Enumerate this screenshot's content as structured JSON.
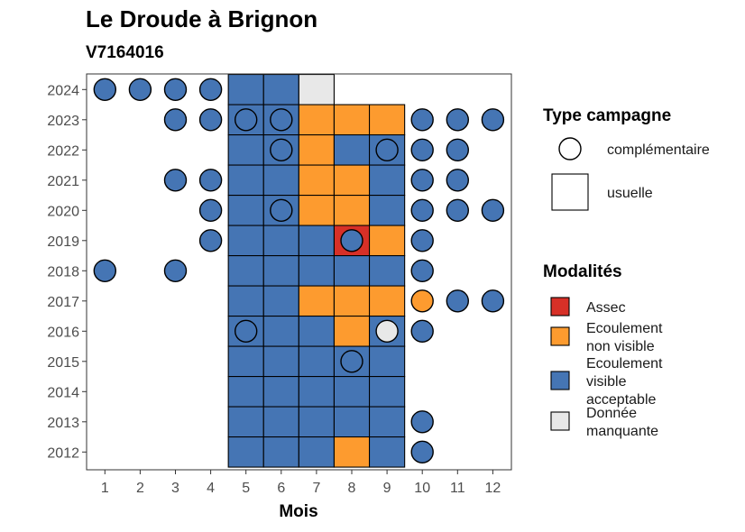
{
  "chart_data": {
    "type": "heatmap",
    "title": "Le Droude à Brignon",
    "subtitle": "V7164016",
    "xlabel": "Mois",
    "ylabel": "",
    "x_ticks": [
      "1",
      "2",
      "3",
      "4",
      "5",
      "6",
      "7",
      "8",
      "9",
      "10",
      "11",
      "12"
    ],
    "y_ticks": [
      "2012",
      "2013",
      "2014",
      "2015",
      "2016",
      "2017",
      "2018",
      "2019",
      "2020",
      "2021",
      "2022",
      "2023",
      "2024"
    ],
    "xlim": [
      0.5,
      12.5
    ],
    "ylim": [
      2011.5,
      2024.5
    ],
    "grid": false,
    "legend_position": "right",
    "legend_shape": {
      "title": "Type campagne",
      "entries": [
        {
          "key": "complementaire",
          "label": "complémentaire",
          "shape": "circle"
        },
        {
          "key": "usuelle",
          "label": "usuelle",
          "shape": "square"
        }
      ]
    },
    "legend_fill": {
      "title": "Modalités",
      "entries": [
        {
          "key": "assec",
          "lines": [
            "Assec"
          ],
          "color": "#d73027"
        },
        {
          "key": "ecoulement_non_visible",
          "lines": [
            "Ecoulement",
            "non visible"
          ],
          "color": "#fd9b2f"
        },
        {
          "key": "ecoulement_visible",
          "lines": [
            "Ecoulement",
            "visible",
            "acceptable"
          ],
          "color": "#4575b4"
        },
        {
          "key": "donnee_manquante",
          "lines": [
            "Donnée",
            "manquante"
          ],
          "color": "#e8e8e8"
        }
      ]
    },
    "usuelle": [
      {
        "year": 2024,
        "month": 5,
        "mod": "ecoulement_visible"
      },
      {
        "year": 2024,
        "month": 6,
        "mod": "ecoulement_visible"
      },
      {
        "year": 2024,
        "month": 7,
        "mod": "donnee_manquante"
      },
      {
        "year": 2023,
        "month": 5,
        "mod": "ecoulement_visible"
      },
      {
        "year": 2023,
        "month": 6,
        "mod": "ecoulement_visible"
      },
      {
        "year": 2023,
        "month": 7,
        "mod": "ecoulement_non_visible"
      },
      {
        "year": 2023,
        "month": 8,
        "mod": "ecoulement_non_visible"
      },
      {
        "year": 2023,
        "month": 9,
        "mod": "ecoulement_non_visible"
      },
      {
        "year": 2022,
        "month": 5,
        "mod": "ecoulement_visible"
      },
      {
        "year": 2022,
        "month": 6,
        "mod": "ecoulement_visible"
      },
      {
        "year": 2022,
        "month": 7,
        "mod": "ecoulement_non_visible"
      },
      {
        "year": 2022,
        "month": 8,
        "mod": "ecoulement_visible"
      },
      {
        "year": 2022,
        "month": 9,
        "mod": "ecoulement_visible"
      },
      {
        "year": 2021,
        "month": 5,
        "mod": "ecoulement_visible"
      },
      {
        "year": 2021,
        "month": 6,
        "mod": "ecoulement_visible"
      },
      {
        "year": 2021,
        "month": 7,
        "mod": "ecoulement_non_visible"
      },
      {
        "year": 2021,
        "month": 8,
        "mod": "ecoulement_non_visible"
      },
      {
        "year": 2021,
        "month": 9,
        "mod": "ecoulement_visible"
      },
      {
        "year": 2020,
        "month": 5,
        "mod": "ecoulement_visible"
      },
      {
        "year": 2020,
        "month": 6,
        "mod": "ecoulement_visible"
      },
      {
        "year": 2020,
        "month": 7,
        "mod": "ecoulement_non_visible"
      },
      {
        "year": 2020,
        "month": 8,
        "mod": "ecoulement_non_visible"
      },
      {
        "year": 2020,
        "month": 9,
        "mod": "ecoulement_visible"
      },
      {
        "year": 2019,
        "month": 5,
        "mod": "ecoulement_visible"
      },
      {
        "year": 2019,
        "month": 6,
        "mod": "ecoulement_visible"
      },
      {
        "year": 2019,
        "month": 7,
        "mod": "ecoulement_visible"
      },
      {
        "year": 2019,
        "month": 8,
        "mod": "assec"
      },
      {
        "year": 2019,
        "month": 9,
        "mod": "ecoulement_non_visible"
      },
      {
        "year": 2018,
        "month": 5,
        "mod": "ecoulement_visible"
      },
      {
        "year": 2018,
        "month": 6,
        "mod": "ecoulement_visible"
      },
      {
        "year": 2018,
        "month": 7,
        "mod": "ecoulement_visible"
      },
      {
        "year": 2018,
        "month": 8,
        "mod": "ecoulement_visible"
      },
      {
        "year": 2018,
        "month": 9,
        "mod": "ecoulement_visible"
      },
      {
        "year": 2017,
        "month": 5,
        "mod": "ecoulement_visible"
      },
      {
        "year": 2017,
        "month": 6,
        "mod": "ecoulement_visible"
      },
      {
        "year": 2017,
        "month": 7,
        "mod": "ecoulement_non_visible"
      },
      {
        "year": 2017,
        "month": 8,
        "mod": "ecoulement_non_visible"
      },
      {
        "year": 2017,
        "month": 9,
        "mod": "ecoulement_non_visible"
      },
      {
        "year": 2016,
        "month": 5,
        "mod": "ecoulement_visible"
      },
      {
        "year": 2016,
        "month": 6,
        "mod": "ecoulement_visible"
      },
      {
        "year": 2016,
        "month": 7,
        "mod": "ecoulement_visible"
      },
      {
        "year": 2016,
        "month": 8,
        "mod": "ecoulement_non_visible"
      },
      {
        "year": 2016,
        "month": 9,
        "mod": "ecoulement_visible"
      },
      {
        "year": 2015,
        "month": 5,
        "mod": "ecoulement_visible"
      },
      {
        "year": 2015,
        "month": 6,
        "mod": "ecoulement_visible"
      },
      {
        "year": 2015,
        "month": 7,
        "mod": "ecoulement_visible"
      },
      {
        "year": 2015,
        "month": 8,
        "mod": "ecoulement_visible"
      },
      {
        "year": 2015,
        "month": 9,
        "mod": "ecoulement_visible"
      },
      {
        "year": 2014,
        "month": 5,
        "mod": "ecoulement_visible"
      },
      {
        "year": 2014,
        "month": 6,
        "mod": "ecoulement_visible"
      },
      {
        "year": 2014,
        "month": 7,
        "mod": "ecoulement_visible"
      },
      {
        "year": 2014,
        "month": 8,
        "mod": "ecoulement_visible"
      },
      {
        "year": 2014,
        "month": 9,
        "mod": "ecoulement_visible"
      },
      {
        "year": 2013,
        "month": 5,
        "mod": "ecoulement_visible"
      },
      {
        "year": 2013,
        "month": 6,
        "mod": "ecoulement_visible"
      },
      {
        "year": 2013,
        "month": 7,
        "mod": "ecoulement_visible"
      },
      {
        "year": 2013,
        "month": 8,
        "mod": "ecoulement_visible"
      },
      {
        "year": 2013,
        "month": 9,
        "mod": "ecoulement_visible"
      },
      {
        "year": 2012,
        "month": 5,
        "mod": "ecoulement_visible"
      },
      {
        "year": 2012,
        "month": 6,
        "mod": "ecoulement_visible"
      },
      {
        "year": 2012,
        "month": 7,
        "mod": "ecoulement_visible"
      },
      {
        "year": 2012,
        "month": 8,
        "mod": "ecoulement_non_visible"
      },
      {
        "year": 2012,
        "month": 9,
        "mod": "ecoulement_visible"
      }
    ],
    "complementaire": [
      {
        "year": 2024,
        "month": 1,
        "mod": "ecoulement_visible"
      },
      {
        "year": 2024,
        "month": 2,
        "mod": "ecoulement_visible"
      },
      {
        "year": 2024,
        "month": 3,
        "mod": "ecoulement_visible"
      },
      {
        "year": 2024,
        "month": 4,
        "mod": "ecoulement_visible"
      },
      {
        "year": 2023,
        "month": 3,
        "mod": "ecoulement_visible"
      },
      {
        "year": 2023,
        "month": 4,
        "mod": "ecoulement_visible"
      },
      {
        "year": 2023,
        "month": 5,
        "mod": "ecoulement_visible"
      },
      {
        "year": 2023,
        "month": 6,
        "mod": "ecoulement_visible"
      },
      {
        "year": 2023,
        "month": 10,
        "mod": "ecoulement_visible"
      },
      {
        "year": 2023,
        "month": 11,
        "mod": "ecoulement_visible"
      },
      {
        "year": 2023,
        "month": 12,
        "mod": "ecoulement_visible"
      },
      {
        "year": 2022,
        "month": 6,
        "mod": "ecoulement_visible"
      },
      {
        "year": 2022,
        "month": 9,
        "mod": "ecoulement_visible"
      },
      {
        "year": 2022,
        "month": 10,
        "mod": "ecoulement_visible"
      },
      {
        "year": 2022,
        "month": 11,
        "mod": "ecoulement_visible"
      },
      {
        "year": 2021,
        "month": 3,
        "mod": "ecoulement_visible"
      },
      {
        "year": 2021,
        "month": 4,
        "mod": "ecoulement_visible"
      },
      {
        "year": 2021,
        "month": 10,
        "mod": "ecoulement_visible"
      },
      {
        "year": 2021,
        "month": 11,
        "mod": "ecoulement_visible"
      },
      {
        "year": 2020,
        "month": 4,
        "mod": "ecoulement_visible"
      },
      {
        "year": 2020,
        "month": 6,
        "mod": "ecoulement_visible"
      },
      {
        "year": 2020,
        "month": 10,
        "mod": "ecoulement_visible"
      },
      {
        "year": 2020,
        "month": 11,
        "mod": "ecoulement_visible"
      },
      {
        "year": 2020,
        "month": 12,
        "mod": "ecoulement_visible"
      },
      {
        "year": 2019,
        "month": 4,
        "mod": "ecoulement_visible"
      },
      {
        "year": 2019,
        "month": 8,
        "mod": "ecoulement_visible"
      },
      {
        "year": 2019,
        "month": 10,
        "mod": "ecoulement_visible"
      },
      {
        "year": 2018,
        "month": 1,
        "mod": "ecoulement_visible"
      },
      {
        "year": 2018,
        "month": 3,
        "mod": "ecoulement_visible"
      },
      {
        "year": 2018,
        "month": 10,
        "mod": "ecoulement_visible"
      },
      {
        "year": 2017,
        "month": 10,
        "mod": "ecoulement_non_visible"
      },
      {
        "year": 2017,
        "month": 11,
        "mod": "ecoulement_visible"
      },
      {
        "year": 2017,
        "month": 12,
        "mod": "ecoulement_visible"
      },
      {
        "year": 2016,
        "month": 5,
        "mod": "ecoulement_visible"
      },
      {
        "year": 2016,
        "month": 9,
        "mod": "donnee_manquante"
      },
      {
        "year": 2016,
        "month": 10,
        "mod": "ecoulement_visible"
      },
      {
        "year": 2015,
        "month": 8,
        "mod": "ecoulement_visible"
      },
      {
        "year": 2013,
        "month": 10,
        "mod": "ecoulement_visible"
      },
      {
        "year": 2012,
        "month": 10,
        "mod": "ecoulement_visible"
      }
    ]
  }
}
